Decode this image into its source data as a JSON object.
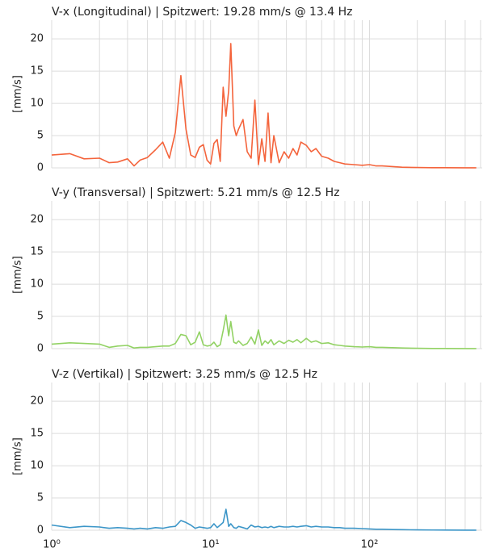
{
  "chart_data": [
    {
      "type": "line",
      "title": "V-x (Longitudinal) | Spitzwert: 19.28 mm/s @ 13.4 Hz",
      "y_label": "[mm/s]",
      "color": "#f4643c",
      "log_x": true,
      "grid": true,
      "xlim": [
        1,
        512
      ],
      "xticks": [
        1,
        10,
        100
      ],
      "xminor": [
        2,
        3,
        4,
        5,
        6,
        7,
        8,
        9,
        20,
        30,
        40,
        50,
        60,
        70,
        80,
        90,
        200,
        300,
        400,
        500
      ],
      "ylim": [
        0,
        22.9
      ],
      "yticks": [
        0,
        5,
        10,
        15,
        20
      ],
      "x": [
        1,
        1.3,
        1.6,
        2,
        2.3,
        2.6,
        3,
        3.3,
        3.6,
        4,
        4.5,
        5,
        5.5,
        6,
        6.5,
        7,
        7.5,
        8,
        8.5,
        9,
        9.5,
        10,
        10.5,
        11,
        11.5,
        12,
        12.5,
        13,
        13.4,
        14,
        14.5,
        15,
        16,
        17,
        18,
        19,
        20,
        21,
        22,
        23,
        24,
        25,
        27,
        29,
        31,
        33,
        35,
        37,
        40,
        43,
        46,
        50,
        55,
        60,
        65,
        70,
        80,
        90,
        100,
        110,
        120,
        140,
        160,
        200,
        250,
        300,
        400,
        470
      ],
      "values": [
        2.0,
        2.2,
        1.4,
        1.5,
        0.8,
        0.9,
        1.4,
        0.3,
        1.2,
        1.6,
        2.8,
        4.0,
        1.5,
        5.5,
        14.3,
        6.0,
        2.0,
        1.6,
        3.2,
        3.6,
        1.2,
        0.6,
        3.8,
        4.4,
        1.0,
        12.5,
        8.0,
        12.0,
        19.28,
        6.5,
        5.0,
        6.0,
        7.5,
        2.5,
        1.5,
        10.5,
        0.5,
        4.5,
        1.0,
        8.5,
        0.8,
        5.0,
        0.8,
        2.5,
        1.5,
        3.0,
        2.0,
        4.0,
        3.5,
        2.5,
        3.0,
        1.8,
        1.5,
        1.0,
        0.8,
        0.6,
        0.5,
        0.4,
        0.5,
        0.3,
        0.3,
        0.2,
        0.1,
        0.05,
        0.02,
        0.02,
        0.01,
        0.01
      ]
    },
    {
      "type": "line",
      "title": "V-y (Transversal) | Spitzwert: 5.21 mm/s @ 12.5 Hz",
      "y_label": "[mm/s]",
      "color": "#92d264",
      "log_x": true,
      "grid": true,
      "xlim": [
        1,
        512
      ],
      "xticks": [
        1,
        10,
        100
      ],
      "xminor": [
        2,
        3,
        4,
        5,
        6,
        7,
        8,
        9,
        20,
        30,
        40,
        50,
        60,
        70,
        80,
        90,
        200,
        300,
        400,
        500
      ],
      "ylim": [
        0,
        22.9
      ],
      "yticks": [
        0,
        5,
        10,
        15,
        20
      ],
      "x": [
        1,
        1.3,
        1.6,
        2,
        2.3,
        2.6,
        3,
        3.3,
        3.6,
        4,
        4.5,
        5,
        5.5,
        6,
        6.5,
        7,
        7.5,
        8,
        8.5,
        9,
        9.5,
        10,
        10.5,
        11,
        11.5,
        12,
        12.5,
        13,
        13.4,
        14,
        14.5,
        15,
        16,
        17,
        18,
        19,
        20,
        21,
        22,
        23,
        24,
        25,
        27,
        29,
        31,
        33,
        35,
        37,
        40,
        43,
        46,
        50,
        55,
        60,
        65,
        70,
        80,
        90,
        100,
        110,
        120,
        140,
        160,
        200,
        250,
        300,
        400,
        470
      ],
      "values": [
        0.7,
        0.9,
        0.8,
        0.7,
        0.2,
        0.4,
        0.5,
        0.1,
        0.2,
        0.2,
        0.3,
        0.4,
        0.4,
        0.8,
        2.2,
        2.0,
        0.6,
        1.0,
        2.6,
        0.6,
        0.4,
        0.5,
        1.0,
        0.3,
        0.6,
        2.8,
        5.21,
        2.0,
        4.2,
        1.0,
        0.8,
        1.2,
        0.5,
        0.8,
        1.8,
        0.7,
        2.9,
        0.5,
        1.2,
        0.8,
        1.4,
        0.6,
        1.2,
        0.8,
        1.3,
        1.0,
        1.4,
        0.9,
        1.6,
        1.0,
        1.2,
        0.8,
        0.9,
        0.6,
        0.5,
        0.4,
        0.3,
        0.25,
        0.3,
        0.2,
        0.2,
        0.15,
        0.1,
        0.05,
        0.02,
        0.02,
        0.01,
        0.01
      ]
    },
    {
      "type": "line",
      "title": "V-z (Vertikal) | Spitzwert: 3.25 mm/s @ 12.5 Hz",
      "y_label": "[mm/s]",
      "color": "#3c96c8",
      "log_x": true,
      "grid": true,
      "xlim": [
        1,
        512
      ],
      "xticks": [
        {
          "value": 1,
          "label": "10⁰"
        },
        {
          "value": 10,
          "label": "10¹"
        },
        {
          "value": 100,
          "label": "10²"
        }
      ],
      "xminor": [
        2,
        3,
        4,
        5,
        6,
        7,
        8,
        9,
        20,
        30,
        40,
        50,
        60,
        70,
        80,
        90,
        200,
        300,
        400,
        500
      ],
      "ylim": [
        0,
        22.9
      ],
      "yticks": [
        0,
        5,
        10,
        15,
        20
      ],
      "x": [
        1,
        1.3,
        1.6,
        2,
        2.3,
        2.6,
        3,
        3.3,
        3.6,
        4,
        4.5,
        5,
        5.5,
        6,
        6.5,
        7,
        7.5,
        8,
        8.5,
        9,
        9.5,
        10,
        10.5,
        11,
        11.5,
        12,
        12.5,
        13,
        13.4,
        14,
        14.5,
        15,
        16,
        17,
        18,
        19,
        20,
        21,
        22,
        23,
        24,
        25,
        27,
        29,
        31,
        33,
        35,
        37,
        40,
        43,
        46,
        50,
        55,
        60,
        65,
        70,
        80,
        90,
        100,
        110,
        120,
        140,
        160,
        200,
        250,
        300,
        400,
        470
      ],
      "values": [
        0.8,
        0.4,
        0.6,
        0.5,
        0.3,
        0.4,
        0.3,
        0.2,
        0.3,
        0.2,
        0.4,
        0.3,
        0.5,
        0.6,
        1.5,
        1.2,
        0.8,
        0.3,
        0.5,
        0.4,
        0.3,
        0.4,
        1.0,
        0.4,
        0.8,
        1.2,
        3.25,
        0.6,
        1.0,
        0.4,
        0.3,
        0.6,
        0.4,
        0.2,
        0.8,
        0.5,
        0.6,
        0.4,
        0.5,
        0.4,
        0.6,
        0.4,
        0.6,
        0.5,
        0.5,
        0.6,
        0.5,
        0.6,
        0.7,
        0.5,
        0.6,
        0.5,
        0.5,
        0.4,
        0.4,
        0.3,
        0.3,
        0.25,
        0.2,
        0.15,
        0.15,
        0.1,
        0.08,
        0.05,
        0.03,
        0.02,
        0.01,
        0.01
      ]
    }
  ]
}
